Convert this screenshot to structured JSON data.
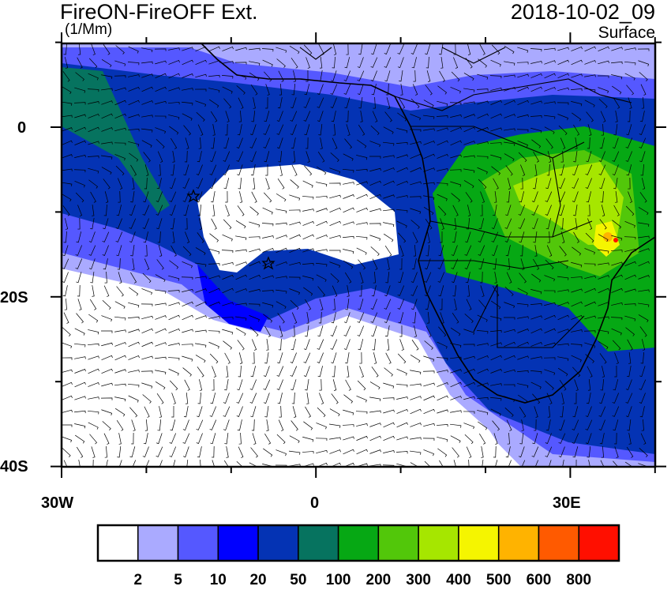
{
  "header": {
    "title": "FireON-FireOFF Ext.",
    "units": "(1/Mm)",
    "datetime": "2018-10-02_09",
    "level": "Surface"
  },
  "map": {
    "lon_range": [
      -30,
      40
    ],
    "lat_range": [
      -40,
      10
    ],
    "lon_tick_labels": [
      "30W",
      "0",
      "30E"
    ],
    "lat_tick_labels": [
      "0",
      "20S",
      "40S"
    ],
    "markers": [
      "star",
      "star"
    ],
    "overlay": "wind barbs"
  },
  "colorbar": {
    "labels": [
      "2",
      "5",
      "10",
      "20",
      "50",
      "100",
      "200",
      "300",
      "400",
      "500",
      "600",
      "800"
    ],
    "colors": [
      "#ffffff",
      "#aaaaff",
      "#5558ff",
      "#0000ff",
      "#0433b4",
      "#06735f",
      "#06a814",
      "#52c70a",
      "#a6e600",
      "#f5f500",
      "#ffb300",
      "#ff5a00",
      "#ff0f00"
    ]
  }
}
